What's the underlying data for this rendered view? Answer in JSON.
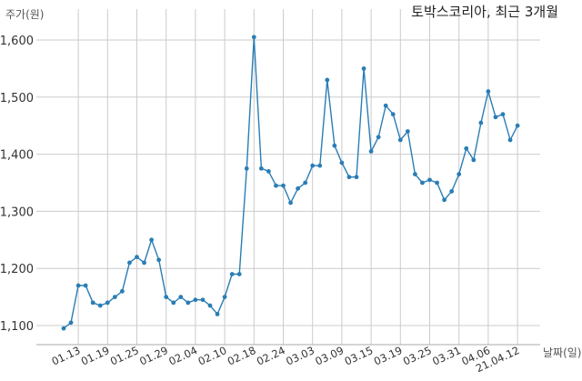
{
  "chart_data": {
    "type": "line",
    "title": "토박스코리아, 최근 3개월",
    "ylabel": "주가(원)",
    "xlabel": "날짜(일)",
    "ylim": [
      1080,
      1650
    ],
    "y_ticks": [
      1100,
      1200,
      1300,
      1400,
      1500,
      1600
    ],
    "y_tick_labels": [
      "1,100",
      "1,200",
      "1,300",
      "1,400",
      "1,500",
      "1,600"
    ],
    "x_tick_labels": [
      "01.13",
      "01.19",
      "01.25",
      "01.29",
      "02.04",
      "02.10",
      "02.18",
      "02.24",
      "03.03",
      "03.09",
      "03.15",
      "03.19",
      "03.25",
      "03.31",
      "04.06",
      "21.04.12"
    ],
    "x_tick_index": [
      2,
      6,
      10,
      14,
      18,
      22,
      26,
      30,
      34,
      38,
      42,
      46,
      50,
      54,
      58,
      62
    ],
    "grid": true,
    "color": "#2a7db5",
    "values": [
      1095,
      1105,
      1170,
      1170,
      1140,
      1135,
      1140,
      1150,
      1160,
      1210,
      1220,
      1210,
      1250,
      1215,
      1150,
      1140,
      1150,
      1140,
      1145,
      1145,
      1135,
      1120,
      1150,
      1190,
      1190,
      1375,
      1605,
      1375,
      1370,
      1345,
      1345,
      1315,
      1340,
      1350,
      1380,
      1380,
      1530,
      1415,
      1385,
      1360,
      1360,
      1550,
      1405,
      1430,
      1485,
      1470,
      1425,
      1440,
      1365,
      1350,
      1355,
      1350,
      1320,
      1335,
      1365,
      1410,
      1390,
      1455,
      1510,
      1465,
      1470,
      1425,
      1450
    ]
  }
}
